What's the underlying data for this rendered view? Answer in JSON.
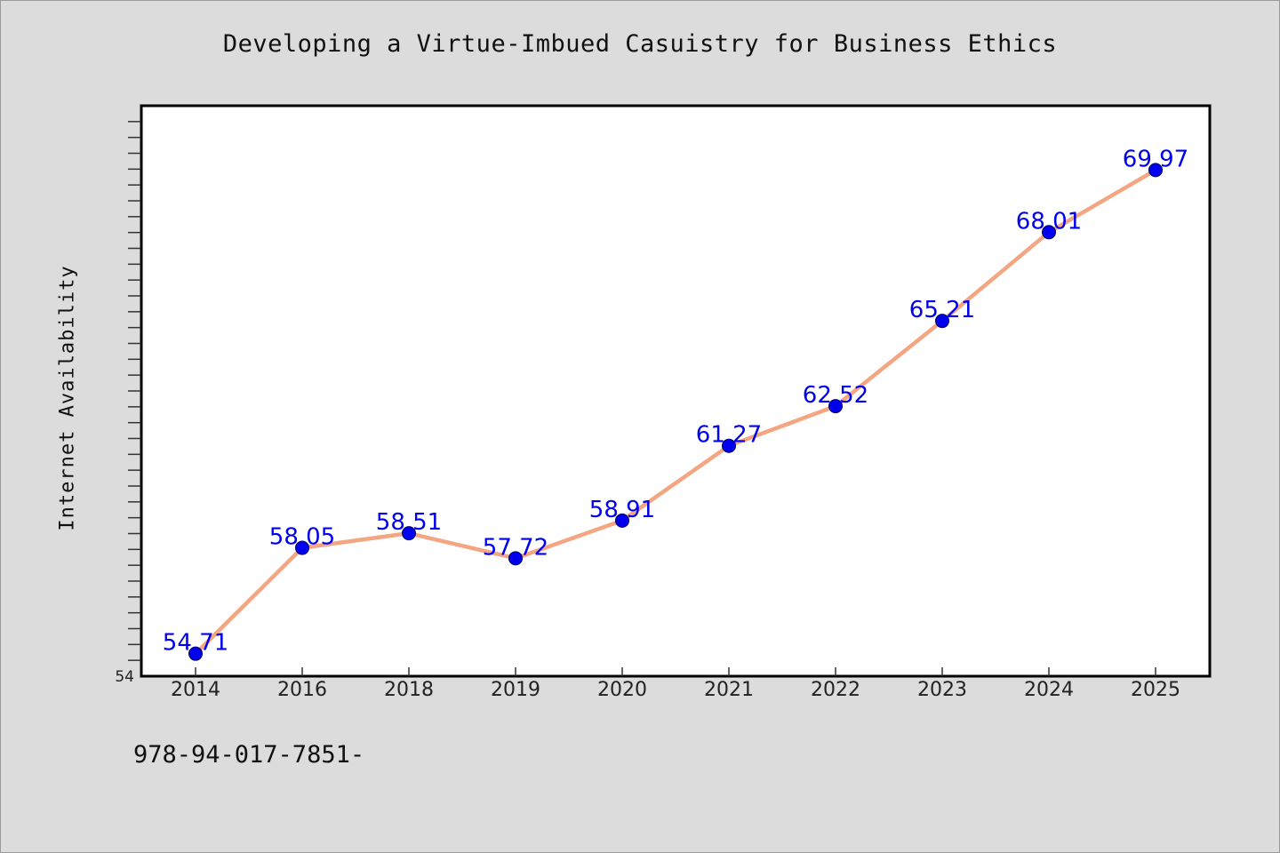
{
  "chart_data": {
    "type": "line",
    "title": "Developing a Virtue-Imbued Casuistry for Business Ethics",
    "xlabel": "",
    "ylabel": "Internet Availability",
    "categories": [
      "2014",
      "2016",
      "2018",
      "2019",
      "2020",
      "2021",
      "2022",
      "2023",
      "2024",
      "2025"
    ],
    "series": [
      {
        "values": [
          54.71,
          58.05,
          58.51,
          57.72,
          58.91,
          61.27,
          62.52,
          65.21,
          68.01,
          69.97
        ],
        "data_labels": [
          "54.71",
          "58.05",
          "58.51",
          "57.72",
          "58.91",
          "61.27",
          "62.52",
          "65.21",
          "68.01",
          "69.97"
        ]
      }
    ],
    "ylim": [
      54,
      72
    ],
    "y_tick_labels": [
      "54"
    ],
    "grid": false,
    "legend": "none",
    "colors": {
      "line": "#f4a582",
      "marker": "#0000ee",
      "data_label": "#0000ee",
      "plot_background": "#ffffff",
      "page_background": "#dcdcdc"
    }
  },
  "footer": {
    "code": "978-94-017-7851-"
  }
}
